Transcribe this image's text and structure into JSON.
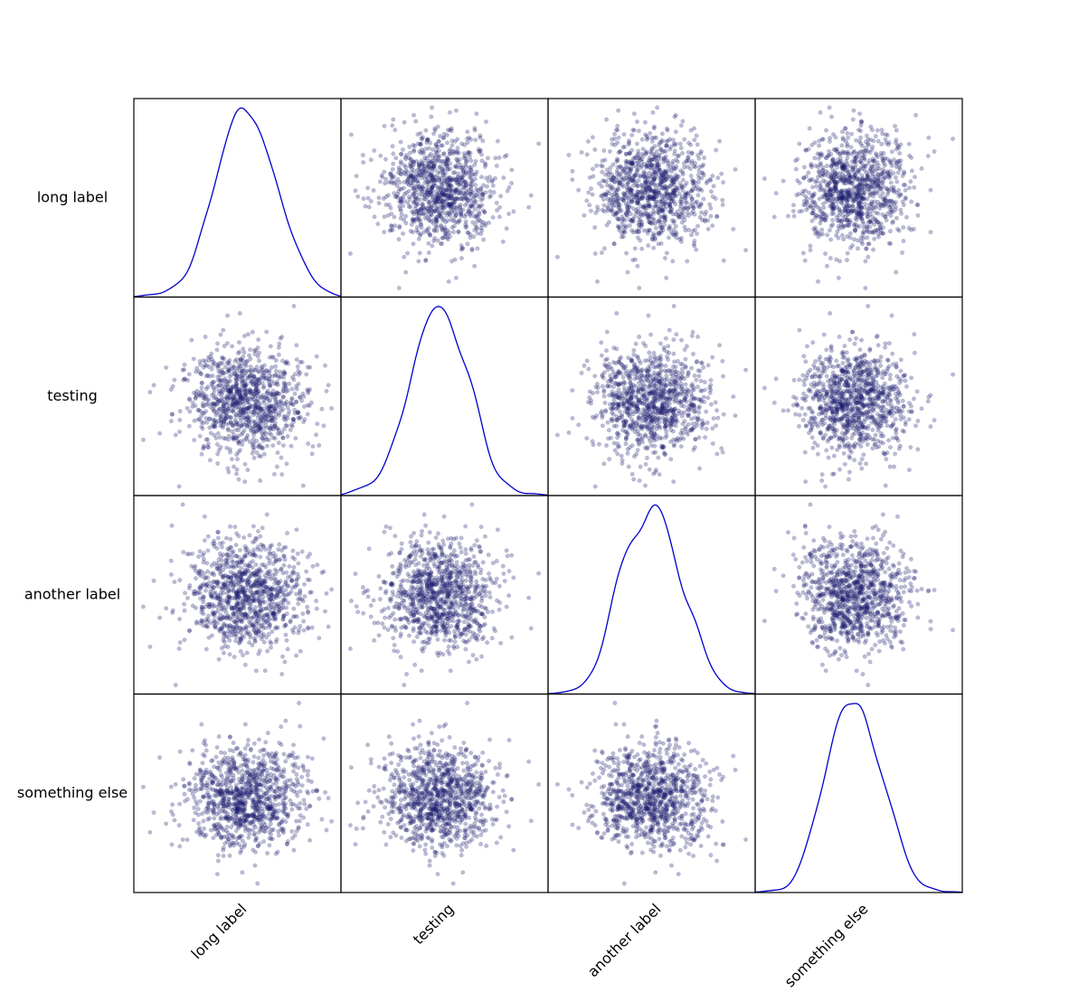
{
  "chart_data": {
    "type": "scatter-matrix",
    "variables": [
      "long label",
      "testing",
      "another label",
      "something else"
    ],
    "diagonal": "kde",
    "n_points": 1000,
    "distribution": "standard normal, independent variables",
    "mean": 0,
    "std": 1,
    "point_alpha": 0.3,
    "grid": false,
    "x_tick_rotation_deg": 45,
    "colors": {
      "points": "#1c1c6e",
      "kde_line": "#0000cc",
      "axes": "#000000",
      "background": "#ffffff"
    }
  }
}
